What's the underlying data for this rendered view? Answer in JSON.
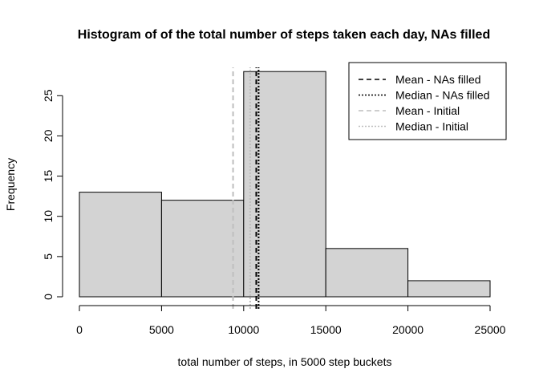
{
  "chart_data": {
    "type": "bar",
    "title": "Histogram of of the total number of steps taken each day, NAs filled",
    "xlabel": "total number of steps, in 5000 step buckets",
    "ylabel": "Frequency",
    "bins": [
      {
        "from": 0,
        "to": 5000,
        "count": 13
      },
      {
        "from": 5000,
        "to": 10000,
        "count": 12
      },
      {
        "from": 10000,
        "to": 15000,
        "count": 28
      },
      {
        "from": 15000,
        "to": 20000,
        "count": 6
      },
      {
        "from": 20000,
        "to": 25000,
        "count": 2
      }
    ],
    "xlim": [
      0,
      25000
    ],
    "ylim": [
      0,
      28
    ],
    "x_ticks": [
      0,
      5000,
      10000,
      15000,
      20000,
      25000
    ],
    "y_ticks": [
      0,
      5,
      10,
      15,
      20,
      25
    ],
    "bar_color": "#d3d3d3",
    "grid": false,
    "reference_lines": [
      {
        "name": "Mean - NAs filled",
        "x": 10766,
        "color": "#000000",
        "style": "dashed"
      },
      {
        "name": "Median - NAs filled",
        "x": 10909,
        "color": "#000000",
        "style": "dotted"
      },
      {
        "name": "Mean - Initial",
        "x": 9354,
        "color": "#bebebe",
        "style": "dashed"
      },
      {
        "name": "Median - Initial",
        "x": 10395,
        "color": "#bebebe",
        "style": "dotted"
      }
    ],
    "legend_position": "top-right"
  }
}
